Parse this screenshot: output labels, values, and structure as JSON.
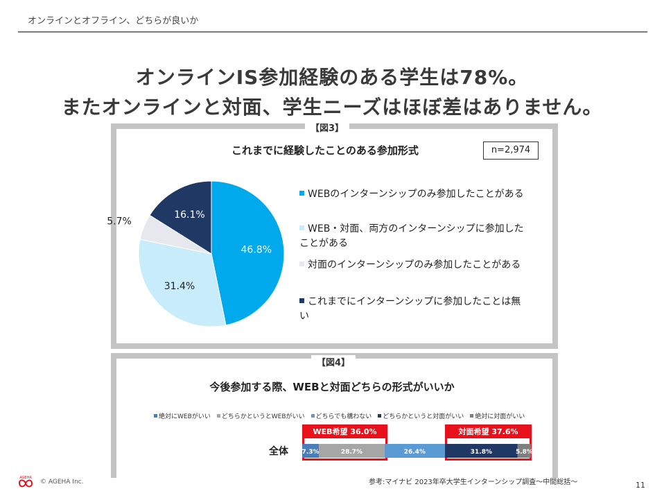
{
  "header": {
    "title": "オンラインとオフライン、どちらが良いか"
  },
  "headline": {
    "line1": "オンラインIS参加経験のある学生は78%。",
    "line2": "またオンラインと対面、学生ニーズはほぼ差はありません。"
  },
  "colors": {
    "web_only": "#00a9eb",
    "both": "#c8ecfa",
    "face_only": "#e6e8ee",
    "none": "#1f3864",
    "red": "#e8101a"
  },
  "chart_data": [
    {
      "type": "pie",
      "figure_label": "【図3】",
      "title": "これまでに経験したことのある参加形式",
      "sample": "n=2,974",
      "categories": [
        "WEBのインターンシップのみ参加したことがある",
        "WEB・対面、両方のインターンシップに参加したことがある",
        "対面のインターンシップのみ参加したことがある",
        "これまでにインターンシップに参加したことは無い"
      ],
      "values": [
        46.8,
        31.4,
        5.7,
        16.1
      ],
      "data_labels": [
        "46.8%",
        "31.4%",
        "5.7%",
        "16.1%"
      ],
      "legend_lines": [
        [
          "WEBのインターンシップのみ参加したことがある"
        ],
        [
          "WEB・対面、両方のインターンシップに参加した",
          "ことがある"
        ],
        [
          "対面のインターンシップのみ参加したことがある"
        ],
        [
          "これまでにインターンシップに参加したことは無",
          "い"
        ]
      ],
      "legend_placement": "right"
    },
    {
      "type": "bar",
      "orientation": "horizontal-stacked",
      "figure_label": "【図4】",
      "title": "今後参加する際、WEBと対面どちらの形式がいいか",
      "categories": [
        "全体"
      ],
      "series": [
        {
          "name": "絶対にWEBがいい",
          "values": [
            7.3
          ],
          "label": "7.3%",
          "color": "#4a7ebb"
        },
        {
          "name": "どちらかというとWEBがいい",
          "values": [
            28.7
          ],
          "label": "28.7%",
          "color": "#a6a6a6"
        },
        {
          "name": "どちらでも構わない",
          "values": [
            26.4
          ],
          "label": "26.4%",
          "color": "#5b9bd5"
        },
        {
          "name": "どちらかというと対面がいい",
          "values": [
            31.8
          ],
          "label": "31.8%",
          "color": "#1f3864"
        },
        {
          "name": "絶対に対面がいい",
          "values": [
            5.8
          ],
          "label": "5.8%",
          "color": "#7f7f7f"
        }
      ],
      "group_labels": {
        "web": "WEB希望 36.0%",
        "face": "対面希望 37.6%"
      },
      "legend_placement": "top"
    }
  ],
  "footer": {
    "logo_text": "AGEHA",
    "copyright": "© AGEHA Inc.",
    "source": "参考:マイナビ 2023年卒大学生インターンシップ調査～中間総括～",
    "page_number": "11"
  }
}
